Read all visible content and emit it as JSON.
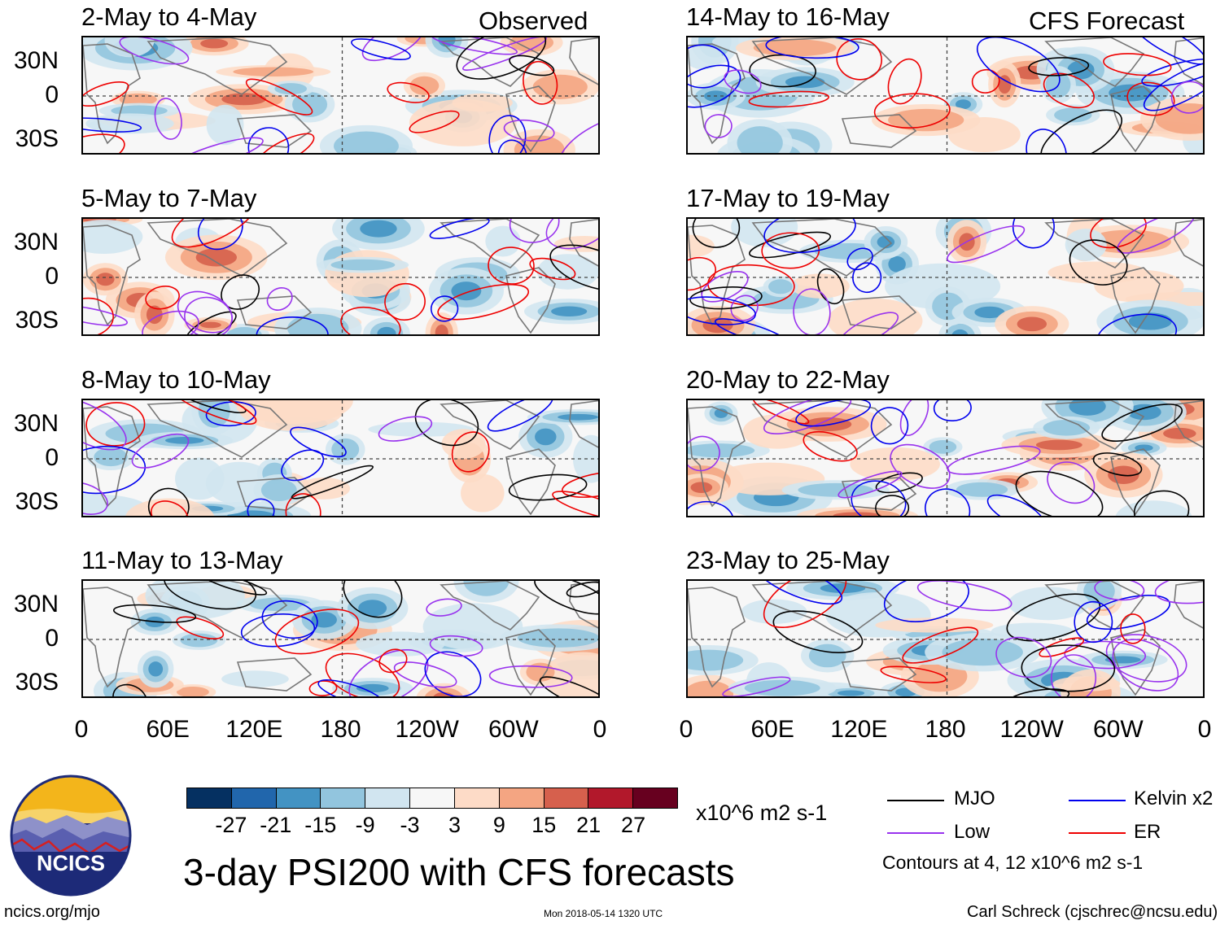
{
  "observed_label": "Observed",
  "forecast_label": "CFS Forecast",
  "latitude_labels": [
    "30N",
    "0",
    "30S"
  ],
  "longitude_labels": [
    "0",
    "60E",
    "120E",
    "180",
    "120W",
    "60W",
    "0"
  ],
  "left_panels": [
    {
      "title": "2-May to 4-May"
    },
    {
      "title": "5-May to 7-May"
    },
    {
      "title": "8-May to 10-May"
    },
    {
      "title": "11-May to 13-May"
    }
  ],
  "right_panels": [
    {
      "title": "14-May to 16-May"
    },
    {
      "title": "17-May to 19-May"
    },
    {
      "title": "20-May to 22-May"
    },
    {
      "title": "23-May to 25-May"
    }
  ],
  "colorbar": {
    "colors": [
      "#053061",
      "#2166ac",
      "#4393c3",
      "#92c5de",
      "#d1e5f0",
      "#f7f7f7",
      "#fddbc7",
      "#f4a582",
      "#d6604d",
      "#b2182b",
      "#67001f"
    ],
    "ticks": [
      "-27",
      "-21",
      "-15",
      "-9",
      "-3",
      "3",
      "9",
      "15",
      "21",
      "27"
    ],
    "units": "x10^6 m2 s-1"
  },
  "legend": [
    {
      "label": "MJO",
      "color": "#000000"
    },
    {
      "label": "Kelvin x2",
      "color": "#0000ee"
    },
    {
      "label": "Low",
      "color": "#9933ee"
    },
    {
      "label": "ER",
      "color": "#ee0000"
    }
  ],
  "contours_note": "Contours at 4, 12 x10^6 m2 s-1",
  "main_title": "3-day PSI200 with CFS forecasts",
  "logo_text": "NCICS",
  "footer_left": "ncics.org/mjo",
  "footer_mid": "Mon 2018-05-14 1320 UTC",
  "footer_right": "Carl Schreck (cjschrec@ncsu.edu)"
}
